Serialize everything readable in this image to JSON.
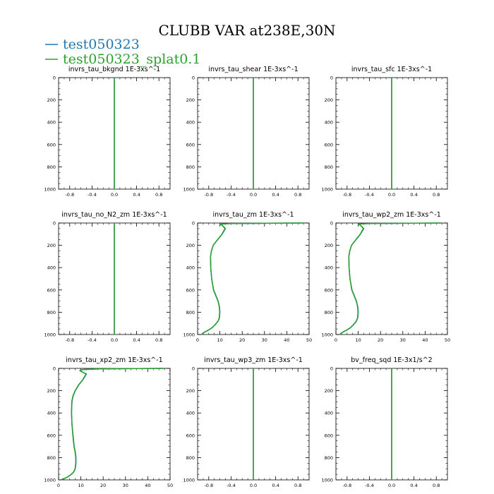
{
  "figure": {
    "title": "CLUBB VAR at238E,30N",
    "legend": [
      {
        "label": "test050323",
        "color": "#1f77b4"
      },
      {
        "label": "test050323_splat0.1",
        "color": "#2ca02c"
      }
    ]
  },
  "chart_data": [
    {
      "type": "line",
      "title": "invrs_tau_bkgnd",
      "units": "1E-3xs^-1",
      "xlim": [
        -1,
        1
      ],
      "xticks": [
        "-0.8",
        "-0.4",
        "0.0",
        "0.4",
        "0.8"
      ],
      "xtick_values": [
        -0.8,
        -0.4,
        0,
        0.4,
        0.8
      ],
      "ylim": [
        1000,
        0
      ],
      "yticks": [
        "0",
        "200",
        "400",
        "600",
        "800",
        "1000"
      ],
      "ytick_values": [
        0,
        200,
        400,
        600,
        800,
        1000
      ],
      "series": [
        {
          "name": "test050323",
          "color": "#1f77b4",
          "x": [
            0,
            0
          ],
          "y": [
            0,
            1000
          ]
        },
        {
          "name": "test050323_splat0.1",
          "color": "#2ca02c",
          "x": [
            0,
            0
          ],
          "y": [
            0,
            1000
          ]
        }
      ]
    },
    {
      "type": "line",
      "title": "invrs_tau_shear",
      "units": "1E-3xs^-1",
      "xlim": [
        -1,
        1
      ],
      "xticks": [
        "-0.8",
        "-0.4",
        "0.0",
        "0.4",
        "0.8"
      ],
      "xtick_values": [
        -0.8,
        -0.4,
        0,
        0.4,
        0.8
      ],
      "ylim": [
        1000,
        0
      ],
      "yticks": [
        "0",
        "200",
        "400",
        "600",
        "800",
        "1000"
      ],
      "ytick_values": [
        0,
        200,
        400,
        600,
        800,
        1000
      ],
      "series": [
        {
          "name": "test050323",
          "color": "#1f77b4",
          "x": [
            0,
            0
          ],
          "y": [
            0,
            1000
          ]
        },
        {
          "name": "test050323_splat0.1",
          "color": "#2ca02c",
          "x": [
            0,
            0
          ],
          "y": [
            0,
            1000
          ]
        }
      ]
    },
    {
      "type": "line",
      "title": "invrs_tau_sfc",
      "units": "1E-3xs^-1",
      "xlim": [
        -1,
        1
      ],
      "xticks": [
        "-0.8",
        "-0.4",
        "0.0",
        "0.4",
        "0.8"
      ],
      "xtick_values": [
        -0.8,
        -0.4,
        0,
        0.4,
        0.8
      ],
      "ylim": [
        1000,
        0
      ],
      "yticks": [
        "0",
        "200",
        "400",
        "600",
        "800",
        "1000"
      ],
      "ytick_values": [
        0,
        200,
        400,
        600,
        800,
        1000
      ],
      "series": [
        {
          "name": "test050323",
          "color": "#1f77b4",
          "x": [
            0,
            0
          ],
          "y": [
            0,
            1000
          ]
        },
        {
          "name": "test050323_splat0.1",
          "color": "#2ca02c",
          "x": [
            0,
            0
          ],
          "y": [
            0,
            1000
          ]
        }
      ]
    },
    {
      "type": "line",
      "title": "invrs_tau_no_N2_zm",
      "units": "1E-3xs^-1",
      "xlim": [
        -1,
        1
      ],
      "xticks": [
        "-0.8",
        "-0.4",
        "0.0",
        "0.4",
        "0.8"
      ],
      "xtick_values": [
        -0.8,
        -0.4,
        0,
        0.4,
        0.8
      ],
      "ylim": [
        1000,
        0
      ],
      "yticks": [
        "0",
        "200",
        "400",
        "600",
        "800",
        "1000"
      ],
      "ytick_values": [
        0,
        200,
        400,
        600,
        800,
        1000
      ],
      "series": [
        {
          "name": "test050323",
          "color": "#1f77b4",
          "x": [
            0,
            0
          ],
          "y": [
            0,
            1000
          ]
        },
        {
          "name": "test050323_splat0.1",
          "color": "#2ca02c",
          "x": [
            0,
            0
          ],
          "y": [
            0,
            1000
          ]
        }
      ]
    },
    {
      "type": "line",
      "title": "invrs_tau_zm",
      "units": "1E-3xs^-1",
      "xlim": [
        0,
        50
      ],
      "xticks": [
        "0",
        "10",
        "20",
        "30",
        "40",
        "50"
      ],
      "xtick_values": [
        0,
        10,
        20,
        30,
        40,
        50
      ],
      "ylim": [
        1000,
        0
      ],
      "yticks": [
        "0",
        "200",
        "400",
        "600",
        "800",
        "1000"
      ],
      "ytick_values": [
        0,
        200,
        400,
        600,
        800,
        1000
      ],
      "series": [
        {
          "name": "test050323",
          "color": "#1f77b4",
          "x": [
            47,
            30,
            15,
            10,
            11,
            12.5,
            11,
            9,
            7,
            6.2,
            5.8,
            5.9,
            6.3,
            7.2,
            8.2,
            9.2,
            9.8,
            10,
            9.8,
            9.2,
            8,
            6.5,
            4.5,
            3,
            2.2,
            2
          ],
          "y": [
            0,
            2,
            5,
            10,
            20,
            50,
            100,
            150,
            200,
            250,
            300,
            400,
            500,
            600,
            650,
            700,
            750,
            800,
            850,
            880,
            910,
            940,
            965,
            980,
            990,
            1000
          ]
        },
        {
          "name": "test050323_splat0.1",
          "color": "#2ca02c",
          "x": [
            47,
            30,
            15,
            10,
            11,
            12.3,
            10.9,
            8.9,
            7,
            6.2,
            5.8,
            5.9,
            6.3,
            7.1,
            8.1,
            9.1,
            9.7,
            9.9,
            9.7,
            9.1,
            7.9,
            6.4,
            4.4,
            3,
            2.3,
            2.1
          ],
          "y": [
            0,
            2,
            5,
            10,
            20,
            50,
            100,
            150,
            200,
            250,
            300,
            400,
            500,
            600,
            650,
            700,
            750,
            800,
            850,
            880,
            910,
            940,
            965,
            980,
            990,
            1000
          ]
        }
      ]
    },
    {
      "type": "line",
      "title": "invrs_tau_wp2_zm",
      "units": "1E-3xs^-1",
      "xlim": [
        0,
        50
      ],
      "xticks": [
        "0",
        "10",
        "20",
        "30",
        "40",
        "50"
      ],
      "xtick_values": [
        0,
        10,
        20,
        30,
        40,
        50
      ],
      "ylim": [
        1000,
        0
      ],
      "yticks": [
        "0",
        "200",
        "400",
        "600",
        "800",
        "1000"
      ],
      "ytick_values": [
        0,
        200,
        400,
        600,
        800,
        1000
      ],
      "series": [
        {
          "name": "test050323",
          "color": "#1f77b4",
          "x": [
            47,
            30,
            15,
            10,
            11,
            12.5,
            11,
            9,
            7,
            6.2,
            5.8,
            5.9,
            6.3,
            7.2,
            8.2,
            9.2,
            9.8,
            10,
            9.8,
            9.2,
            8,
            6.5,
            4.5,
            3,
            2.2,
            2
          ],
          "y": [
            0,
            2,
            5,
            10,
            20,
            50,
            100,
            150,
            200,
            250,
            300,
            400,
            500,
            600,
            650,
            700,
            750,
            800,
            850,
            880,
            910,
            940,
            965,
            980,
            990,
            1000
          ]
        },
        {
          "name": "test050323_splat0.1",
          "color": "#2ca02c",
          "x": [
            47,
            30,
            15,
            10,
            11,
            12.3,
            10.9,
            8.9,
            7,
            6.2,
            5.8,
            5.9,
            6.3,
            7.1,
            8.1,
            9.1,
            9.7,
            9.9,
            9.7,
            9.1,
            7.9,
            6.4,
            4.4,
            3,
            2.3,
            2.1
          ],
          "y": [
            0,
            2,
            5,
            10,
            20,
            50,
            100,
            150,
            200,
            250,
            300,
            400,
            500,
            600,
            650,
            700,
            750,
            800,
            850,
            880,
            910,
            940,
            965,
            980,
            990,
            1000
          ]
        }
      ]
    },
    {
      "type": "line",
      "title": "invrs_tau_xp2_zm",
      "units": "1E-3xs^-1",
      "xlim": [
        0,
        50
      ],
      "xticks": [
        "0",
        "10",
        "20",
        "30",
        "40",
        "50"
      ],
      "xtick_values": [
        0,
        10,
        20,
        30,
        40,
        50
      ],
      "ylim": [
        1000,
        0
      ],
      "yticks": [
        "0",
        "200",
        "400",
        "600",
        "800",
        "1000"
      ],
      "ytick_values": [
        0,
        200,
        400,
        600,
        800,
        1000
      ],
      "series": [
        {
          "name": "test050323",
          "color": "#1f77b4",
          "x": [
            47,
            30,
            18,
            11,
            9.5,
            12.5,
            11,
            9,
            7.5,
            6.5,
            6,
            5.8,
            6,
            6.5,
            7,
            7.5,
            7.8,
            7.8,
            7.5,
            6.8,
            5.5,
            4,
            2.5,
            1.5,
            1
          ],
          "y": [
            0,
            2,
            5,
            10,
            20,
            50,
            100,
            150,
            200,
            250,
            300,
            400,
            500,
            600,
            700,
            750,
            800,
            850,
            900,
            930,
            955,
            975,
            988,
            995,
            1000
          ]
        },
        {
          "name": "test050323_splat0.1",
          "color": "#2ca02c",
          "x": [
            47,
            30,
            18,
            11,
            9.5,
            12.3,
            10.9,
            8.9,
            7.4,
            6.4,
            5.9,
            5.8,
            6,
            6.4,
            6.9,
            7.4,
            7.7,
            7.7,
            7.4,
            6.7,
            5.4,
            3.9,
            2.4,
            1.5,
            1.1
          ],
          "y": [
            0,
            2,
            5,
            10,
            20,
            50,
            100,
            150,
            200,
            250,
            300,
            400,
            500,
            600,
            700,
            750,
            800,
            850,
            900,
            930,
            955,
            975,
            988,
            995,
            1000
          ]
        }
      ]
    },
    {
      "type": "line",
      "title": "invrs_tau_wp3_zm",
      "units": "1E-3xs^-1",
      "xlim": [
        -1,
        1
      ],
      "xticks": [
        "-0.8",
        "-0.4",
        "0.0",
        "0.4",
        "0.8"
      ],
      "xtick_values": [
        -0.8,
        -0.4,
        0,
        0.4,
        0.8
      ],
      "ylim": [
        1000,
        0
      ],
      "yticks": [
        "0",
        "200",
        "400",
        "600",
        "800",
        "1000"
      ],
      "ytick_values": [
        0,
        200,
        400,
        600,
        800,
        1000
      ],
      "series": [
        {
          "name": "test050323",
          "color": "#1f77b4",
          "x": [
            0,
            0
          ],
          "y": [
            0,
            1000
          ]
        },
        {
          "name": "test050323_splat0.1",
          "color": "#2ca02c",
          "x": [
            0,
            0
          ],
          "y": [
            0,
            1000
          ]
        }
      ]
    },
    {
      "type": "line",
      "title": "bv_freq_sqd",
      "units": "1E-3x1/s^2",
      "xlim": [
        -1,
        1
      ],
      "xticks": [
        "-0.8",
        "-0.4",
        "0.0",
        "0.4",
        "0.8"
      ],
      "xtick_values": [
        -0.8,
        -0.4,
        0,
        0.4,
        0.8
      ],
      "ylim": [
        1000,
        0
      ],
      "yticks": [
        "0",
        "200",
        "400",
        "600",
        "800",
        "1000"
      ],
      "ytick_values": [
        0,
        200,
        400,
        600,
        800,
        1000
      ],
      "series": [
        {
          "name": "test050323",
          "color": "#1f77b4",
          "x": [
            0,
            0
          ],
          "y": [
            0,
            1000
          ]
        },
        {
          "name": "test050323_splat0.1",
          "color": "#2ca02c",
          "x": [
            0,
            0
          ],
          "y": [
            0,
            1000
          ]
        }
      ]
    }
  ]
}
